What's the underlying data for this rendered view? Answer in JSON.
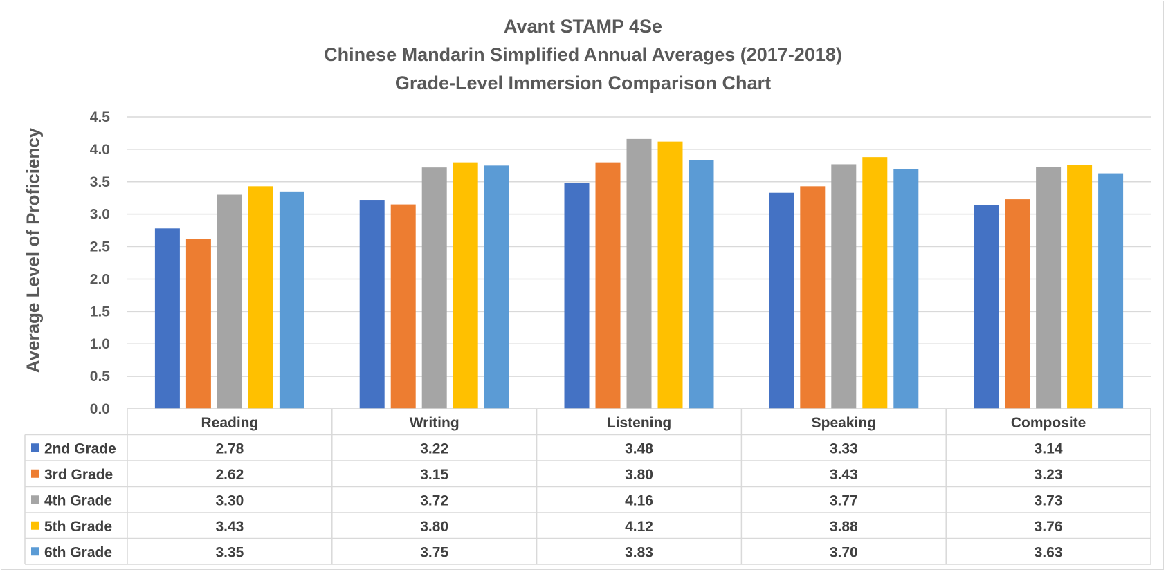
{
  "chart_data": {
    "type": "bar",
    "title": [
      "Avant STAMP 4Se",
      "Chinese Mandarin Simplified Annual Averages (2017-2018)",
      "Grade-Level Immersion Comparison Chart"
    ],
    "xlabel": "",
    "ylabel": "Average Level of Proficiency",
    "ylim": [
      0,
      4.5
    ],
    "yticks": [
      "0.0",
      "0.5",
      "1.0",
      "1.5",
      "2.0",
      "2.5",
      "3.0",
      "3.5",
      "4.0",
      "4.5"
    ],
    "grid": true,
    "legend": "data-table",
    "categories": [
      "Reading",
      "Writing",
      "Listening",
      "Speaking",
      "Composite"
    ],
    "series": [
      {
        "name": "2nd Grade",
        "color": "#4472c4",
        "values": [
          2.78,
          3.22,
          3.48,
          3.33,
          3.14
        ],
        "labels": [
          "2.78",
          "3.22",
          "3.48",
          "3.33",
          "3.14"
        ]
      },
      {
        "name": "3rd Grade",
        "color": "#ed7d31",
        "values": [
          2.62,
          3.15,
          3.8,
          3.43,
          3.23
        ],
        "labels": [
          "2.62",
          "3.15",
          "3.80",
          "3.43",
          "3.23"
        ]
      },
      {
        "name": "4th Grade",
        "color": "#a5a5a5",
        "values": [
          3.3,
          3.72,
          4.16,
          3.77,
          3.73
        ],
        "labels": [
          "3.30",
          "3.72",
          "4.16",
          "3.77",
          "3.73"
        ]
      },
      {
        "name": "5th Grade",
        "color": "#ffc000",
        "values": [
          3.43,
          3.8,
          4.12,
          3.88,
          3.76
        ],
        "labels": [
          "3.43",
          "3.80",
          "4.12",
          "3.88",
          "3.76"
        ]
      },
      {
        "name": "6th Grade",
        "color": "#5b9bd5",
        "values": [
          3.35,
          3.75,
          3.83,
          3.7,
          3.63
        ],
        "labels": [
          "3.35",
          "3.75",
          "3.83",
          "3.70",
          "3.63"
        ]
      }
    ]
  }
}
